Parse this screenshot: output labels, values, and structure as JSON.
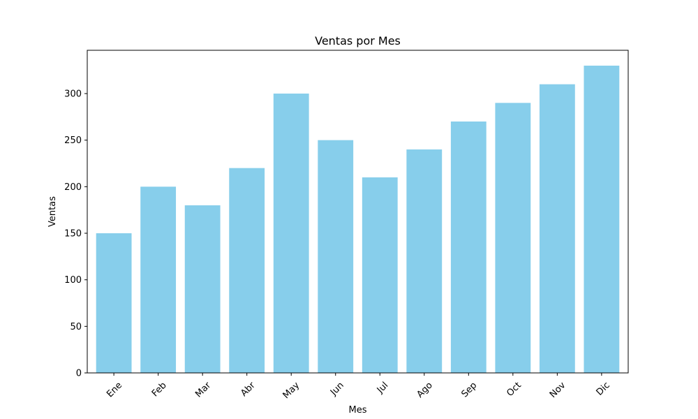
{
  "chart_data": {
    "type": "bar",
    "title": "Ventas por Mes",
    "xlabel": "Mes",
    "ylabel": "Ventas",
    "categories": [
      "Ene",
      "Feb",
      "Mar",
      "Abr",
      "May",
      "Jun",
      "Jul",
      "Ago",
      "Sep",
      "Oct",
      "Nov",
      "Dic"
    ],
    "values": [
      150,
      200,
      180,
      220,
      300,
      250,
      210,
      240,
      270,
      290,
      310,
      330
    ],
    "ylim": [
      0,
      346.5
    ],
    "yticks": [
      0,
      50,
      100,
      150,
      200,
      250,
      300
    ],
    "grid": false,
    "legend": "none",
    "bar_color": "#87CEEB",
    "x_tick_rotation": 45
  }
}
